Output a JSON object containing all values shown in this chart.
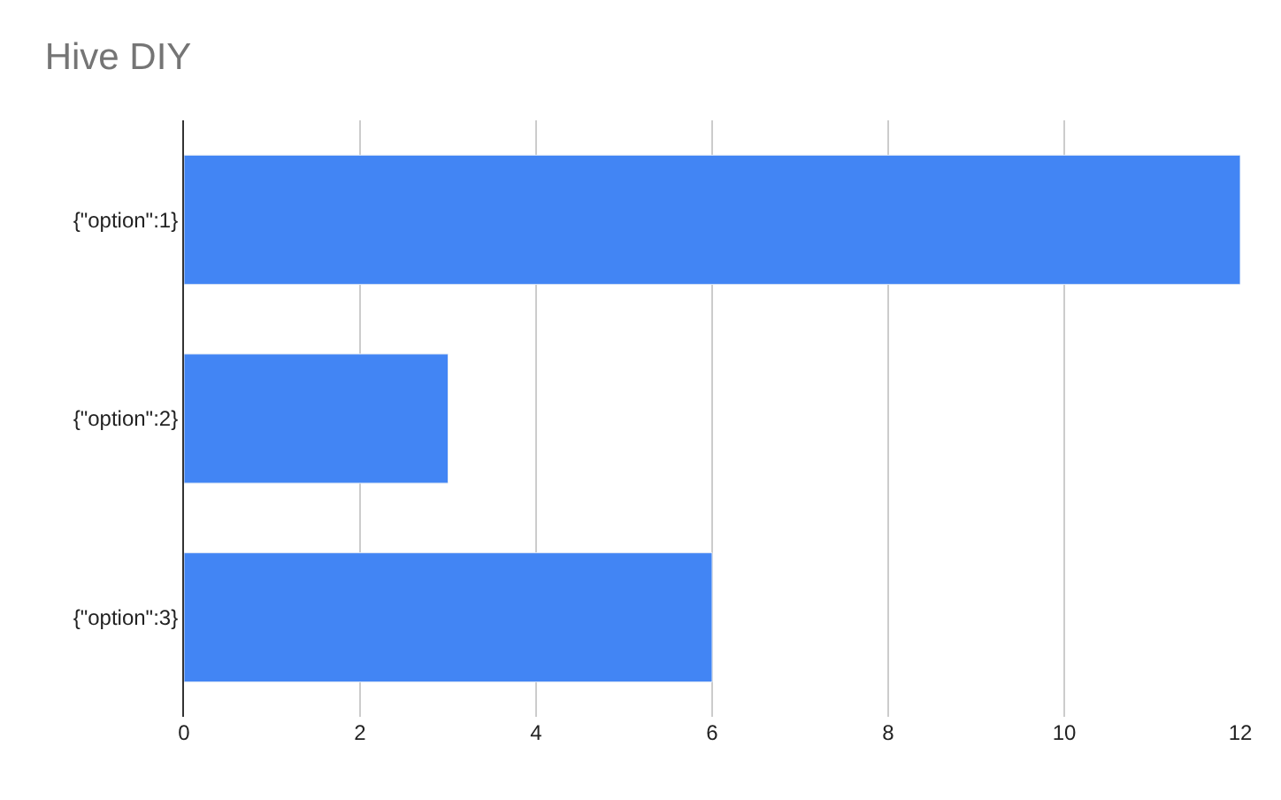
{
  "chart_data": {
    "type": "bar",
    "orientation": "horizontal",
    "title": "Hive DIY",
    "categories": [
      "{\"option\":1}",
      "{\"option\":2}",
      "{\"option\":3}"
    ],
    "values": [
      12,
      3,
      6
    ],
    "color": "#4285f4",
    "xlim": [
      0,
      12
    ],
    "xticks": [
      0,
      2,
      4,
      6,
      8,
      10,
      12
    ],
    "grid": "x",
    "legend": false
  }
}
